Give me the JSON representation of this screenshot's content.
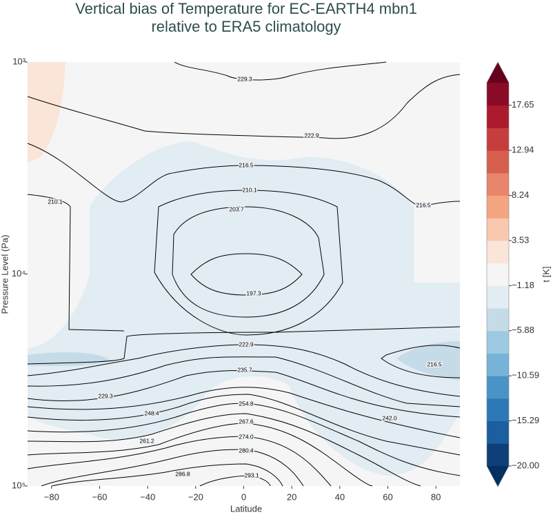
{
  "chart_data": {
    "type": "contour",
    "title": [
      "Vertical bias of Temperature for EC-EARTH4 mbn1",
      "relative to ERA5 climatology"
    ],
    "xlabel": "Latitude",
    "ylabel": "Pressure Level (Pa)",
    "xlim": [
      -90,
      90
    ],
    "xticks": [
      {
        "value": -80,
        "label": "−80"
      },
      {
        "value": -60,
        "label": "−60"
      },
      {
        "value": -40,
        "label": "−40"
      },
      {
        "value": -20,
        "label": "−20"
      },
      0,
      20,
      40,
      60,
      80
    ],
    "ylim": [
      100000,
      1000
    ],
    "yscale": "log",
    "yticks": [
      {
        "value": 1000,
        "label": "10³"
      },
      {
        "value": 10000,
        "label": "10⁴"
      },
      {
        "value": 100000,
        "label": "10⁵"
      }
    ],
    "line_color": "#000000",
    "contour_levels": {
      "values": [
        197.3,
        203.7,
        210.1,
        216.5,
        222.9,
        229.3,
        235.7,
        242.0,
        248.4,
        254.8,
        261.2,
        267.6,
        274.0,
        280.4,
        286.8,
        293.1
      ],
      "value_labels": [
        "197.3",
        "203.7",
        "210.1",
        "216.5",
        "222.9",
        "229.3",
        "235.7",
        "242.0",
        "248.4",
        "254.8",
        "261.2",
        "267.6",
        "274.0",
        "280.4",
        "286.8",
        "293.1"
      ]
    },
    "colorbar": {
      "label": "t [K]",
      "lim": [
        -20,
        20
      ],
      "colors": [
        "#0e3f78",
        "#1c5ea0",
        "#2d78b6",
        "#4a93c6",
        "#76b3d6",
        "#9ecae1",
        "#c6dbe8",
        "#e1ecf3",
        "#f5f5f5",
        "#fbe5d8",
        "#f9c8ae",
        "#f4a582",
        "#e8856a",
        "#d6604d",
        "#c53e3d",
        "#ac1a2e",
        "#8a0b25"
      ],
      "under": "#053061",
      "over": "#67001f",
      "ticks": [
        {
          "value": -20,
          "label": "−20.00"
        },
        {
          "value": -15.29,
          "label": "−15.29"
        },
        {
          "value": -10.59,
          "label": "−10.59"
        },
        {
          "value": -5.88,
          "label": "−5.88"
        },
        {
          "value": -1.18,
          "label": "−1.18"
        },
        3.53,
        8.24,
        12.94,
        17.65
      ]
    }
  }
}
